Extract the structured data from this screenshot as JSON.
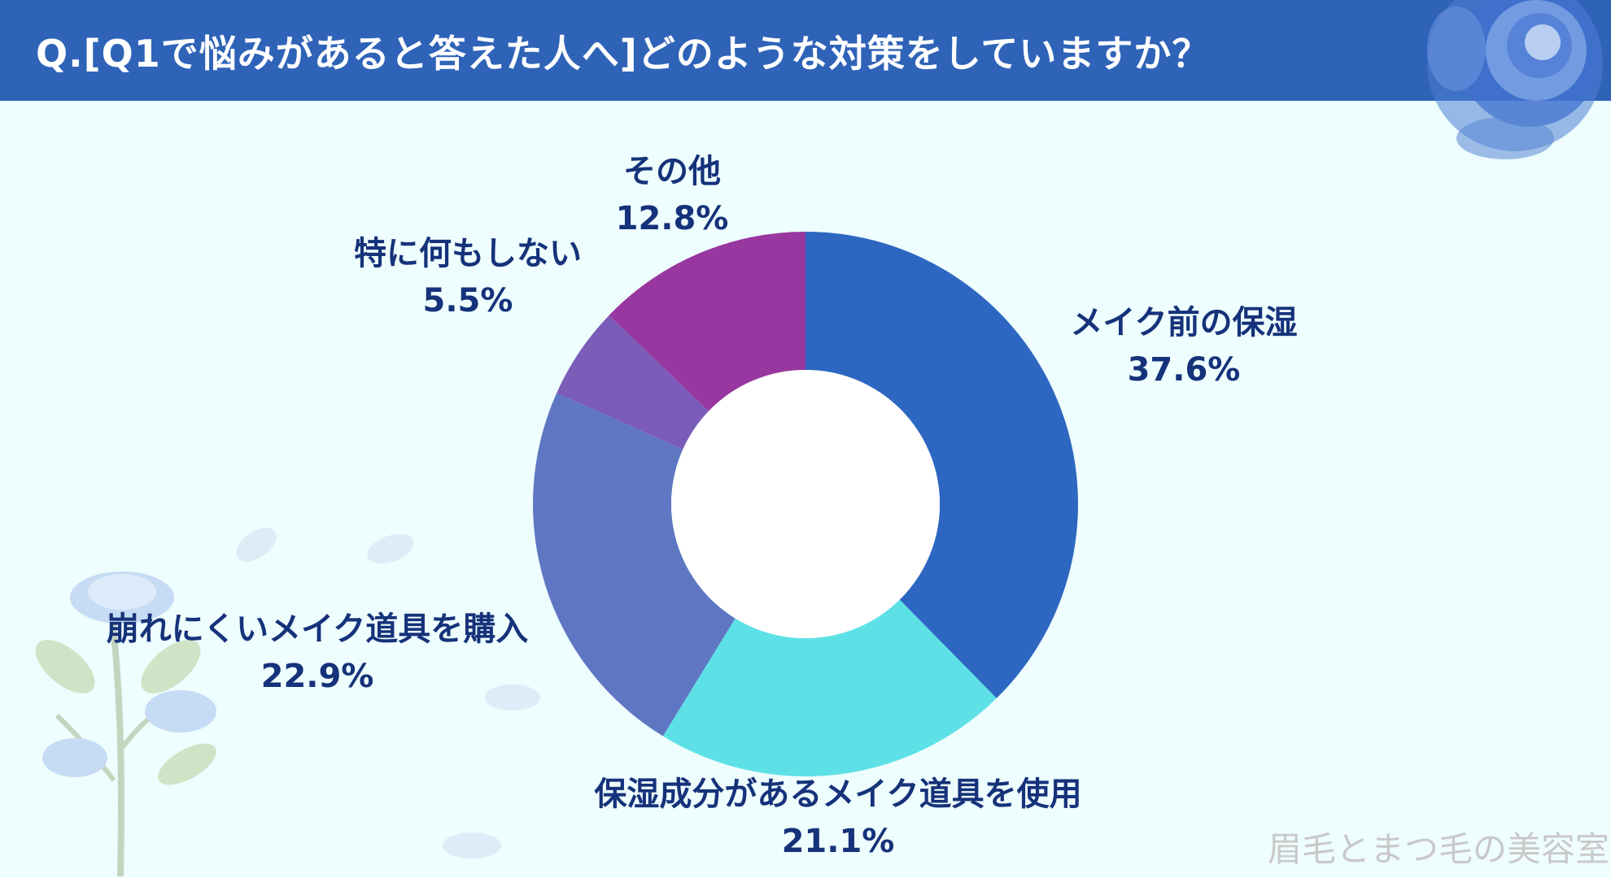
{
  "header": {
    "title": "Q.[Q1で悩みがあると答えた人へ]どのような対策をしていますか？"
  },
  "watermark": "眉毛とまつ毛の美容室",
  "chart_data": {
    "type": "pie",
    "title": "Q.[Q1で悩みがあると答えた人へ]どのような対策をしていますか？",
    "donut": true,
    "start_angle_deg": 0,
    "direction": "clockwise",
    "slices": [
      {
        "label": "メイク前の保湿",
        "value": 37.6,
        "display": "37.6%",
        "color": "#2d67c1"
      },
      {
        "label": "保湿成分があるメイク道具を使用",
        "value": 21.1,
        "display": "21.1%",
        "color": "#5de1e6"
      },
      {
        "label": "崩れにくいメイク道具を購入",
        "value": 22.9,
        "display": "22.9%",
        "color": "#5f77c2"
      },
      {
        "label": "特に何もしない",
        "value": 5.5,
        "display": "5.5%",
        "color": "#7b5cb8"
      },
      {
        "label": "その他",
        "value": 12.8,
        "display": "12.8%",
        "color": "#98379f"
      }
    ]
  },
  "colors": {
    "header_bg": "#2f63b8",
    "page_bg": "#eefdfd",
    "label_text": "#15327a"
  },
  "decorations": {
    "top_right": "blue-rose",
    "bottom_left": "blue-flower-branch"
  }
}
